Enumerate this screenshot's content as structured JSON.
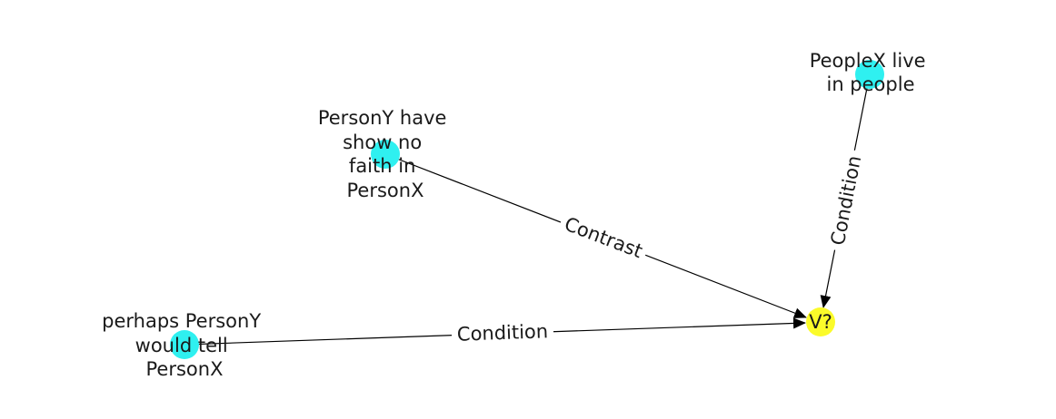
{
  "colors": {
    "source_node": "#2ff0f0",
    "target_node": "#fbfb2a",
    "edge": "#000000",
    "text": "#1a1a1a"
  },
  "nodes": [
    {
      "id": "n1",
      "label_lines": [
        "PeopleX live",
        "in people"
      ]
    },
    {
      "id": "n2",
      "label_lines": [
        "PersonY have",
        "show no",
        "faith in",
        "PersonX"
      ]
    },
    {
      "id": "n3",
      "label_lines": [
        "perhaps PersonY",
        "would tell",
        "PersonX"
      ]
    },
    {
      "id": "n4",
      "label_lines": [
        "V?"
      ]
    }
  ],
  "edges": [
    {
      "id": "e1",
      "label": "Condition"
    },
    {
      "id": "e2",
      "label": "Contrast"
    },
    {
      "id": "e3",
      "label": "Condition"
    }
  ]
}
